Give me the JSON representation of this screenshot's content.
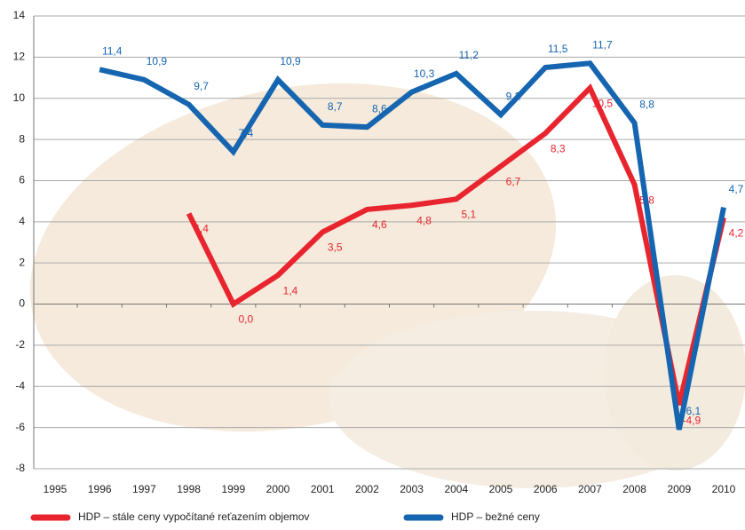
{
  "chart_data": {
    "type": "line",
    "categories": [
      "1995",
      "1996",
      "1997",
      "1998",
      "1999",
      "2000",
      "2001",
      "2002",
      "2003",
      "2004",
      "2005",
      "2006",
      "2007",
      "2008",
      "2009",
      "2010"
    ],
    "series": [
      {
        "name": "HDP – stále ceny vypočítané reťazením objemov",
        "color": "#e8252f",
        "values": [
          null,
          null,
          null,
          4.4,
          0.0,
          1.4,
          3.5,
          4.6,
          4.8,
          5.1,
          6.7,
          8.3,
          10.5,
          5.8,
          -4.9,
          4.2
        ],
        "value_labels": [
          null,
          null,
          null,
          "4,4",
          "0,0",
          "1,4",
          "3,5",
          "4,6",
          "4,8",
          "5,1",
          "6,7",
          "8,3",
          "10,5",
          "5,8",
          "-4,9",
          "4,2"
        ]
      },
      {
        "name": "HDP – bežné ceny",
        "color": "#1565b0",
        "values": [
          null,
          11.4,
          10.9,
          9.7,
          7.4,
          10.9,
          8.7,
          8.6,
          10.3,
          11.2,
          9.2,
          11.5,
          11.7,
          8.8,
          -6.1,
          4.7
        ],
        "value_labels": [
          null,
          "11,4",
          "10,9",
          "9,7",
          "7,4",
          "10,9",
          "8,7",
          "8,6",
          "10,3",
          "11,2",
          "9,2",
          "11,5",
          "11,7",
          "8,8",
          "-6,1",
          "4,7"
        ]
      }
    ],
    "ylim": [
      -8,
      14
    ],
    "yticks": [
      -8,
      -6,
      -4,
      -2,
      0,
      2,
      4,
      6,
      8,
      10,
      12,
      14
    ],
    "grid": true
  }
}
